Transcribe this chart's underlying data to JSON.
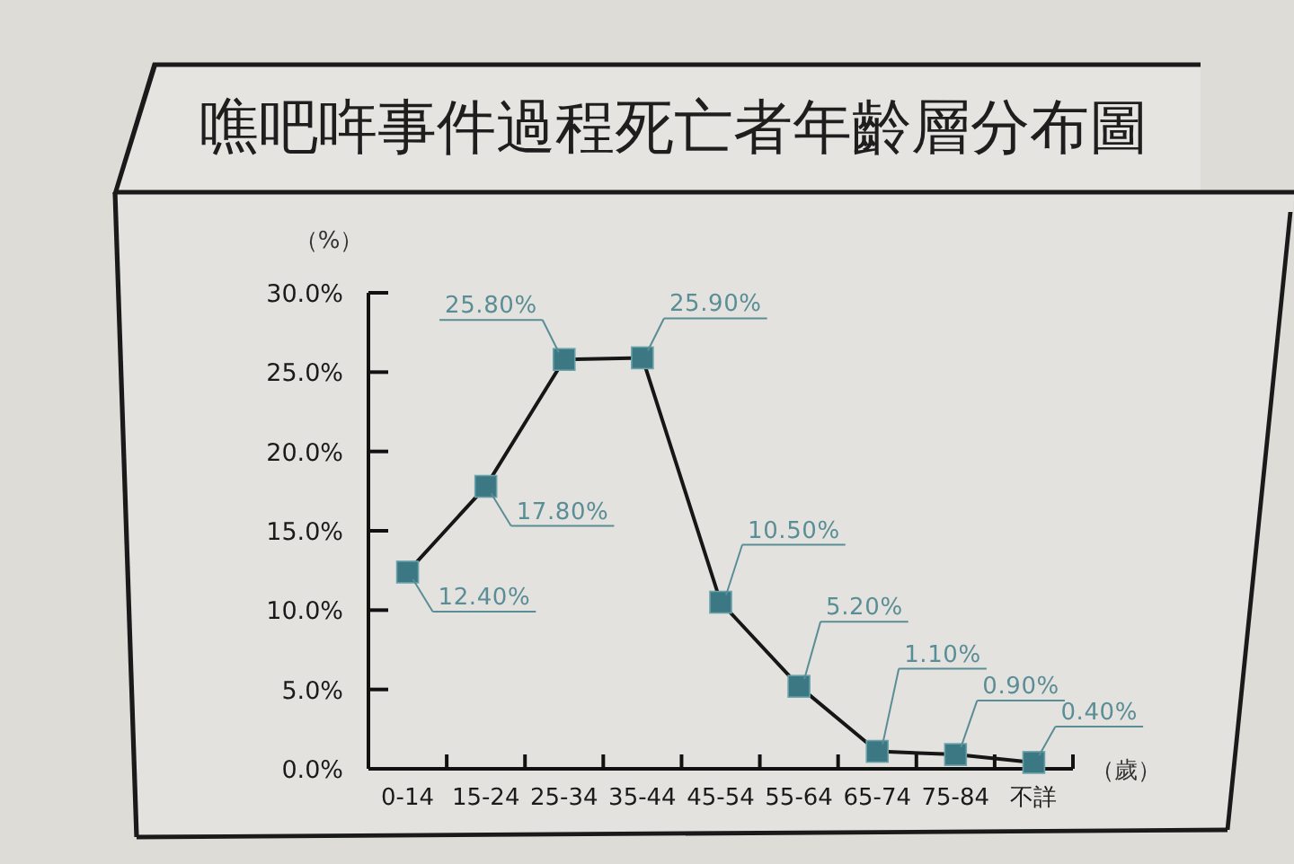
{
  "chart_data": {
    "type": "line",
    "title": "噍吧哖事件過程死亡者年齡層分布圖",
    "ylabel": "（%）",
    "xlabel": "（歲）",
    "categories": [
      "0-14",
      "15-24",
      "25-34",
      "35-44",
      "45-54",
      "55-64",
      "65-74",
      "75-84",
      "不詳"
    ],
    "series": [
      {
        "color": "#3c7883",
        "values": [
          12.4,
          17.8,
          25.8,
          25.9,
          10.5,
          5.2,
          1.1,
          0.9,
          0.4
        ],
        "value_labels": [
          "12.40%",
          "17.80%",
          "25.80%",
          "25.90%",
          "10.50%",
          "5.20%",
          "1.10%",
          "0.90%",
          "0.40%"
        ]
      }
    ],
    "ylim": [
      0,
      30
    ],
    "yticks": [
      {
        "value": 0,
        "label": "0.0%"
      },
      {
        "value": 5,
        "label": "5.0%"
      },
      {
        "value": 10,
        "label": "10.0%"
      },
      {
        "value": 15,
        "label": "15.0%"
      },
      {
        "value": 20,
        "label": "20.0%"
      },
      {
        "value": 25,
        "label": "25.0%"
      },
      {
        "value": 30,
        "label": "30.0%"
      }
    ],
    "marker": "square",
    "line_style": "solid"
  }
}
